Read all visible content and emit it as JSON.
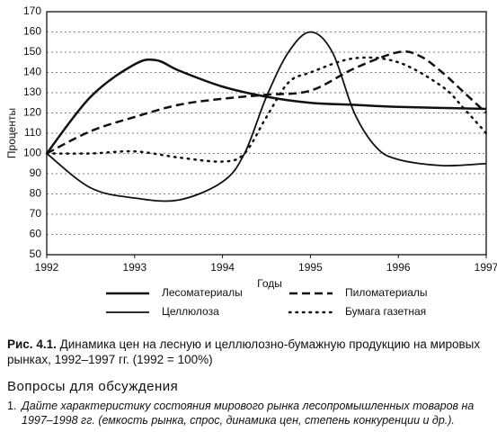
{
  "chart_data": {
    "type": "line",
    "x_label": "Годы",
    "y_label": "Проценты",
    "xlim": [
      1992,
      1997
    ],
    "xticks": [
      1992,
      1993,
      1994,
      1995,
      1996,
      1997
    ],
    "ylim": [
      50,
      170
    ],
    "yticks": [
      50,
      60,
      70,
      80,
      90,
      100,
      110,
      120,
      130,
      140,
      150,
      160,
      170
    ],
    "grid": true,
    "series": [
      {
        "name": "Лесоматериалы",
        "color": "#111111",
        "dash": "solid",
        "width": 2.5,
        "x": [
          1992,
          1992.5,
          1993,
          1993.25,
          1993.5,
          1994,
          1994.5,
          1995,
          1995.5,
          1996,
          1997
        ],
        "values": [
          100,
          128,
          144,
          146,
          141,
          133,
          128,
          125,
          124,
          123,
          122
        ]
      },
      {
        "name": "Пиломатериалы",
        "color": "#111111",
        "dash": "dashed",
        "width": 2.5,
        "x": [
          1992,
          1992.5,
          1993,
          1993.5,
          1994,
          1994.5,
          1995,
          1995.5,
          1996,
          1996.25,
          1996.5,
          1996.75,
          1997
        ],
        "values": [
          100,
          111,
          118,
          124,
          127,
          129,
          131,
          142,
          150,
          148,
          140,
          130,
          120
        ]
      },
      {
        "name": "Целлюлоза",
        "color": "#111111",
        "dash": "solid",
        "width": 1.8,
        "x": [
          1992,
          1992.5,
          1993,
          1993.5,
          1994,
          1994.25,
          1994.5,
          1994.75,
          1995,
          1995.25,
          1995.5,
          1995.75,
          1996,
          1996.5,
          1997
        ],
        "values": [
          100,
          83,
          78,
          77,
          86,
          100,
          128,
          150,
          160,
          150,
          120,
          103,
          97,
          94,
          95
        ]
      },
      {
        "name": "Бумага газетная",
        "color": "#111111",
        "dash": "dotted",
        "width": 2.5,
        "x": [
          1992,
          1992.5,
          1993,
          1993.5,
          1994,
          1994.25,
          1994.5,
          1994.75,
          1995,
          1995.5,
          1996,
          1996.5,
          1996.75,
          1997
        ],
        "values": [
          100,
          100,
          101,
          98,
          96,
          100,
          118,
          135,
          140,
          147,
          145,
          133,
          122,
          110
        ]
      }
    ]
  },
  "caption": {
    "label": "Рис. 4.1.",
    "text": "Динамика цен на лесную и целлюлозно-бумажную продукцию на мировых рынках, 1992–1997 гг. (1992 = 100%)"
  },
  "section": {
    "title": "Вопросы для обсуждения",
    "items": [
      {
        "number": "1.",
        "text": "Дайте характеристику состояния мирового рынка лесопромышленных товаров на 1997–1998 гг. (емкость рынка, спрос, динамика цен, степень конкуренции и др.)."
      }
    ]
  }
}
